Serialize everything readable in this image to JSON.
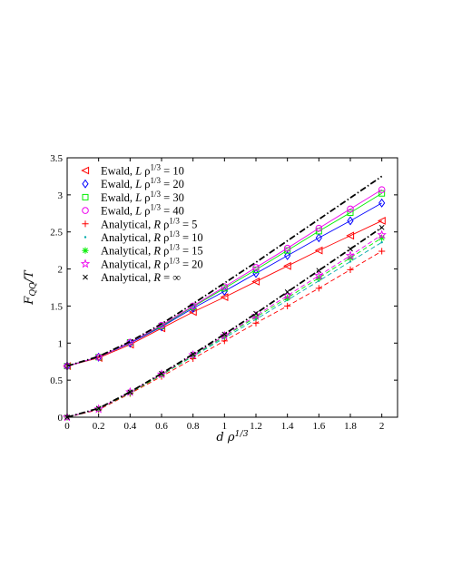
{
  "chart_data": {
    "type": "line",
    "title": "",
    "xlabel": "d ρ^{1/3}",
    "ylabel": "F_{QQ}/T",
    "xlim": [
      0,
      2.1
    ],
    "ylim": [
      0,
      3.5
    ],
    "xticks": [
      "0",
      "0.2",
      "0.4",
      "0.6",
      "0.8",
      "1",
      "1.2",
      "1.4",
      "1.6",
      "1.8",
      "2"
    ],
    "yticks": [
      "0",
      "0.5",
      "1",
      "1.5",
      "2",
      "2.5",
      "3",
      "3.5"
    ],
    "grid": false,
    "legend_position": "top-left",
    "legend": [
      {
        "text": "Ewald, L ρ^{1/3} = 10",
        "marker": "triangle-left",
        "color": "#ff0000"
      },
      {
        "text": "Ewald, L ρ^{1/3} = 20",
        "marker": "diamond",
        "color": "#0000ff"
      },
      {
        "text": "Ewald, L ρ^{1/3} = 30",
        "marker": "square",
        "color": "#00ee00"
      },
      {
        "text": "Ewald, L ρ^{1/3} = 40",
        "marker": "circle",
        "color": "#ee00ee"
      },
      {
        "text": "Analytical, R ρ^{1/3} = 5",
        "marker": "plus",
        "color": "#ff0000"
      },
      {
        "text": "Analytical, R ρ^{1/3} = 10",
        "marker": "dot",
        "color": "#00aaaa"
      },
      {
        "text": "Analytical, R ρ^{1/3} = 15",
        "marker": "asterisk",
        "color": "#00ee00"
      },
      {
        "text": "Analytical, R ρ^{1/3} = 20",
        "marker": "star",
        "color": "#ee00ee"
      },
      {
        "text": "Analytical, R = ∞",
        "marker": "cross",
        "color": "#000000"
      }
    ],
    "x": [
      0,
      0.2,
      0.4,
      0.6,
      0.8,
      1.0,
      1.2,
      1.4,
      1.6,
      1.8,
      2.0
    ],
    "upper_series": [
      {
        "name": "Ewald, L ρ^{1/3} = 10",
        "color": "#ff0000",
        "marker": "triangle-left",
        "style": "solid",
        "values": [
          0.69,
          0.8,
          0.98,
          1.2,
          1.42,
          1.62,
          1.83,
          2.04,
          2.25,
          2.45,
          2.65
        ]
      },
      {
        "name": "Ewald, L ρ^{1/3} = 20",
        "color": "#0000ff",
        "marker": "diamond",
        "style": "solid",
        "values": [
          0.69,
          0.81,
          1.0,
          1.22,
          1.47,
          1.7,
          1.94,
          2.18,
          2.42,
          2.65,
          2.89
        ]
      },
      {
        "name": "Ewald, L ρ^{1/3} = 30",
        "color": "#00ee00",
        "marker": "square",
        "style": "solid",
        "values": [
          0.69,
          0.81,
          1.01,
          1.23,
          1.49,
          1.74,
          1.99,
          2.25,
          2.51,
          2.76,
          3.02
        ]
      },
      {
        "name": "Ewald, L ρ^{1/3} = 40",
        "color": "#ee00ee",
        "marker": "circle",
        "style": "solid",
        "values": [
          0.69,
          0.81,
          1.01,
          1.24,
          1.5,
          1.76,
          2.02,
          2.28,
          2.55,
          2.81,
          3.07
        ]
      },
      {
        "name": "",
        "color": "#000000",
        "marker": "none",
        "style": "dashdot",
        "values": [
          0.69,
          0.82,
          1.02,
          1.26,
          1.53,
          1.81,
          2.09,
          2.38,
          2.67,
          2.96,
          3.25
        ]
      }
    ],
    "lower_series": [
      {
        "name": "Analytical, R ρ^{1/3} = 5",
        "color": "#ff0000",
        "marker": "plus",
        "style": "dashed",
        "values": [
          0.0,
          0.1,
          0.32,
          0.55,
          0.79,
          1.03,
          1.27,
          1.5,
          1.74,
          1.99,
          2.24
        ]
      },
      {
        "name": "Analytical, R ρ^{1/3} = 10",
        "color": "#00aaaa",
        "marker": "dot",
        "style": "dashed",
        "values": [
          0.0,
          0.11,
          0.33,
          0.57,
          0.82,
          1.07,
          1.32,
          1.58,
          1.84,
          2.1,
          2.36
        ]
      },
      {
        "name": "Analytical, R ρ^{1/3} = 15",
        "color": "#00ee00",
        "marker": "asterisk",
        "style": "dashed",
        "values": [
          0.0,
          0.11,
          0.33,
          0.57,
          0.83,
          1.09,
          1.35,
          1.61,
          1.88,
          2.15,
          2.42
        ]
      },
      {
        "name": "Analytical, R ρ^{1/3} = 20",
        "color": "#ee00ee",
        "marker": "star",
        "style": "dashed",
        "values": [
          0.0,
          0.11,
          0.34,
          0.58,
          0.84,
          1.1,
          1.37,
          1.64,
          1.91,
          2.18,
          2.46
        ]
      },
      {
        "name": "Analytical, R = ∞",
        "color": "#000000",
        "marker": "cross",
        "style": "dashdot",
        "values": [
          0.0,
          0.12,
          0.34,
          0.59,
          0.85,
          1.12,
          1.4,
          1.69,
          1.98,
          2.27,
          2.56
        ]
      }
    ]
  }
}
